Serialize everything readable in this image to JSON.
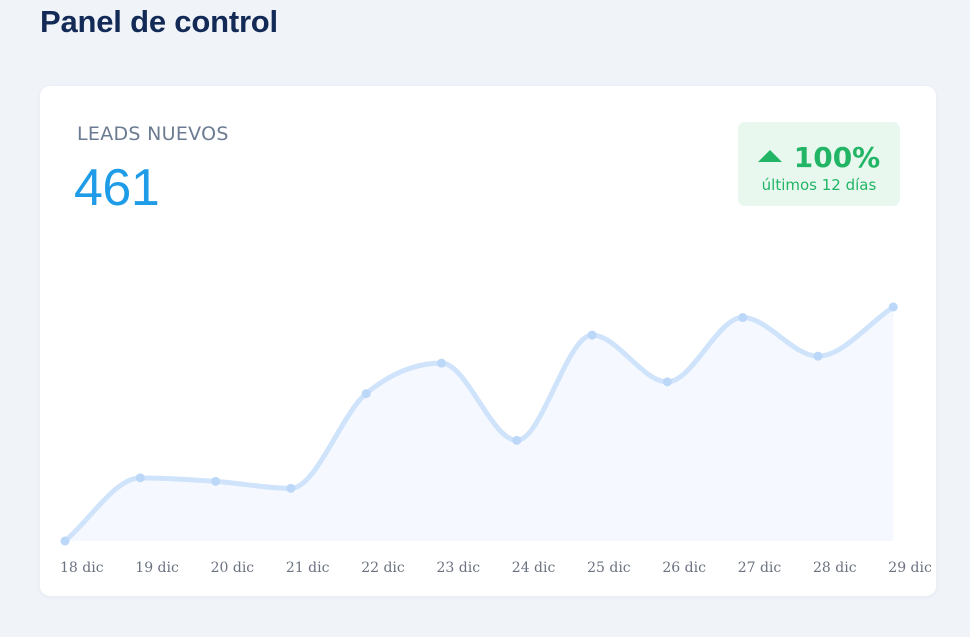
{
  "header": {
    "title": "Panel de control"
  },
  "card": {
    "metric_label": "LEADS NUEVOS",
    "metric_value": "461",
    "trend": {
      "direction": "up",
      "value": "100%",
      "period": "últimos 12 días",
      "color": "#22b566"
    }
  },
  "chart_data": {
    "type": "area",
    "categories": [
      "18 dic",
      "19 dic",
      "20 dic",
      "21 dic",
      "22 dic",
      "23 dic",
      "24 dic",
      "25 dic",
      "26 dic",
      "27 dic",
      "28 dic",
      "29 dic"
    ],
    "values": [
      0,
      27,
      25.5,
      22.5,
      63,
      76,
      43,
      88,
      68,
      95.5,
      79,
      100
    ],
    "ylim": [
      0,
      100
    ],
    "grid": false,
    "line_color": "#cfe3fb",
    "fill_color": "#f5f9ff"
  }
}
